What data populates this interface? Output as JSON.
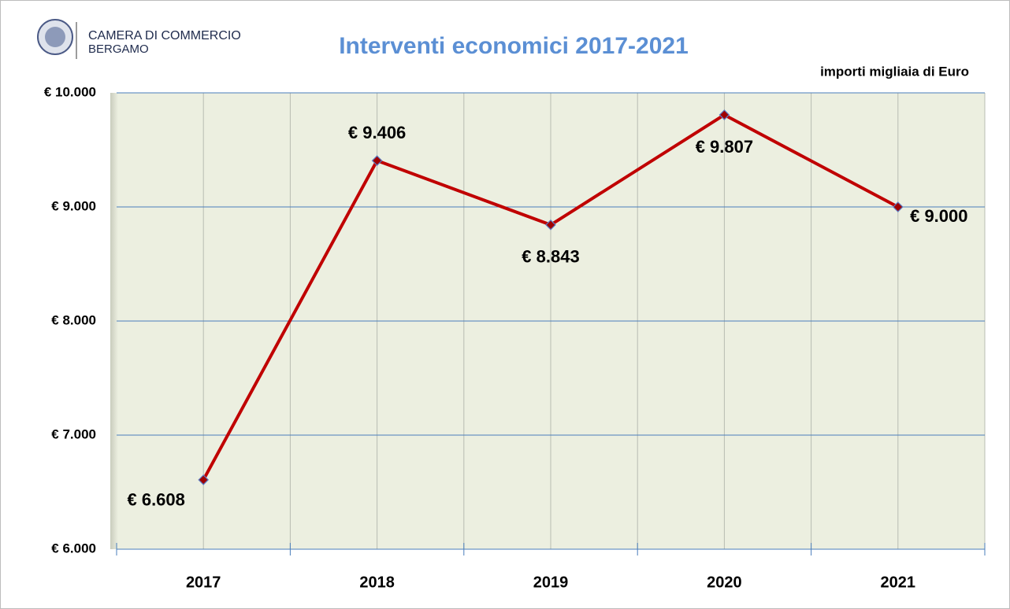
{
  "chart_data": {
    "type": "line",
    "org_name": "CAMERA DI COMMERCIO",
    "org_city": "BERGAMO",
    "title": "Interventi economici 2017-2021",
    "subtitle": "importi migliaia di Euro",
    "categories": [
      "2017",
      "2018",
      "2019",
      "2020",
      "2021"
    ],
    "series": [
      {
        "name": "Interventi economici",
        "color": "#c00000",
        "values": [
          6608,
          9406,
          8843,
          9807,
          9000
        ],
        "value_labels": [
          "€ 6.608",
          "€ 9.406",
          "€ 8.843",
          "€ 9.807",
          "€ 9.000"
        ]
      }
    ],
    "ylim": [
      6000,
      10000
    ],
    "yticks": [
      {
        "value": 6000,
        "label": "€ 6.000"
      },
      {
        "value": 7000,
        "label": "€ 7.000"
      },
      {
        "value": 8000,
        "label": "€ 8.000"
      },
      {
        "value": 9000,
        "label": "€ 9.000"
      },
      {
        "value": 10000,
        "label": "€ 10.000"
      }
    ],
    "grid": true
  }
}
